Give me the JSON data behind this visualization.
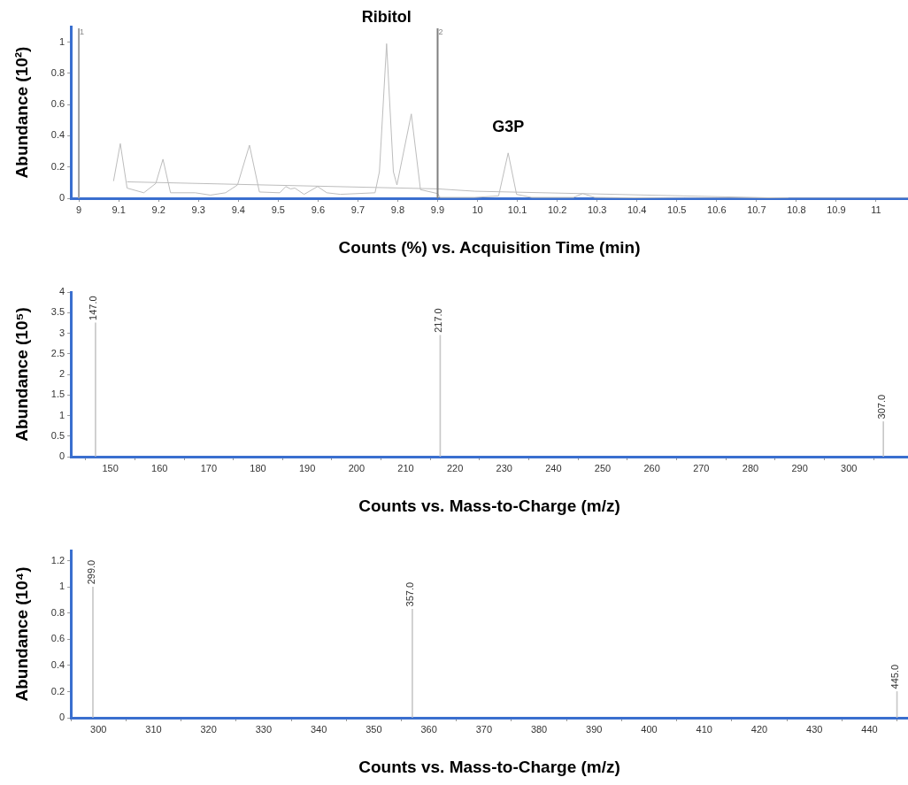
{
  "chart_data": [
    {
      "type": "line",
      "xlabel": "Counts (%) vs. Acquisition Time (min)",
      "ylabel": "Abundance (10²)",
      "xlim": [
        8.98,
        11.08
      ],
      "xticks": [
        9,
        9.1,
        9.2,
        9.3,
        9.4,
        9.5,
        9.6,
        9.7,
        9.8,
        9.9,
        10,
        10.1,
        10.2,
        10.3,
        10.4,
        10.5,
        10.6,
        10.7,
        10.8,
        10.9,
        11
      ],
      "ylim": [
        0,
        1.1
      ],
      "yticks": [
        0,
        0.2,
        0.4,
        0.6,
        0.8,
        1
      ],
      "grid": false,
      "legend": false,
      "marker": "none",
      "series": [
        {
          "color": "#bdbdbd",
          "x": [
            9.087,
            9.104,
            9.121,
            9.163,
            9.193,
            9.211,
            9.23,
            9.292,
            9.33,
            9.368,
            9.398,
            9.428,
            9.453,
            9.504,
            9.519,
            9.531,
            9.542,
            9.565,
            9.599,
            9.622,
            9.656,
            9.743,
            9.754,
            9.772,
            9.789,
            9.798,
            9.834,
            9.857,
            9.9,
            9.906,
            9.993,
            10.053,
            10.077,
            10.098,
            10.136,
            10.241,
            10.264,
            10.294,
            10.52,
            11.08
          ],
          "values": [
            0.11,
            0.35,
            0.065,
            0.035,
            0.095,
            0.25,
            0.035,
            0.035,
            0.02,
            0.035,
            0.085,
            0.34,
            0.04,
            0.035,
            0.075,
            0.06,
            0.065,
            0.025,
            0.075,
            0.035,
            0.025,
            0.035,
            0.17,
            0.99,
            0.17,
            0.085,
            0.54,
            0.055,
            0.03,
            0.005,
            0.005,
            0.015,
            0.29,
            0.025,
            0.005,
            0.005,
            0.03,
            0.005,
            0,
            0
          ]
        },
        {
          "color": "#bdbdbd",
          "x": [
            9.121,
            9.9,
            9.993,
            10.78
          ],
          "values": [
            0.105,
            0.06,
            0.045,
            0
          ]
        }
      ],
      "ref_lines": [
        {
          "axis": "x",
          "value": 9,
          "color": "#a0a0a0"
        },
        {
          "axis": "x",
          "value": 9.9,
          "color": "#808080"
        }
      ],
      "annotations": [
        {
          "text": "Ribitol",
          "x": 9.772,
          "y": 0.99
        },
        {
          "text": "G3P",
          "x": 10.077,
          "y": 0.29
        },
        {
          "text": "1",
          "x": 9,
          "y": 1.1
        },
        {
          "text": "2",
          "x": 9.9,
          "y": 1.1
        }
      ]
    },
    {
      "type": "bar",
      "xlabel": "Counts vs. Mass-to-Charge (m/z)",
      "ylabel": "Abundance (10⁵)",
      "x": [
        147,
        217,
        307
      ],
      "values": [
        3.25,
        2.95,
        0.85
      ],
      "annotations": [
        {
          "text": "147.0",
          "x": 147,
          "y": 3.25
        },
        {
          "text": "217.0",
          "x": 217,
          "y": 2.95
        },
        {
          "text": "307.0",
          "x": 307,
          "y": 0.85
        }
      ],
      "color": "#c8c8c8",
      "xlim": [
        142,
        312
      ],
      "xticks": [
        150,
        160,
        170,
        180,
        190,
        200,
        210,
        220,
        230,
        240,
        250,
        260,
        270,
        280,
        290,
        300
      ],
      "ylim": [
        0,
        4
      ],
      "yticks": [
        0,
        0.5,
        1,
        1.5,
        2,
        2.5,
        3,
        3.5,
        4
      ],
      "grid": false,
      "legend": false
    },
    {
      "type": "bar",
      "xlabel": "Counts vs. Mass-to-Charge (m/z)",
      "ylabel": "Abundance (10⁴)",
      "x": [
        299,
        357,
        445
      ],
      "values": [
        1.0,
        0.83,
        0.2
      ],
      "annotations": [
        {
          "text": "299.0",
          "x": 299,
          "y": 1.0
        },
        {
          "text": "357.0",
          "x": 357,
          "y": 0.83
        },
        {
          "text": "445.0",
          "x": 445,
          "y": 0.2
        }
      ],
      "color": "#c8c8c8",
      "xlim": [
        295,
        447
      ],
      "xticks": [
        300,
        310,
        320,
        330,
        340,
        350,
        360,
        370,
        380,
        390,
        400,
        410,
        420,
        430,
        440
      ],
      "ylim": [
        0,
        1.28
      ],
      "yticks": [
        0,
        0.2,
        0.4,
        0.6,
        0.8,
        1,
        1.2
      ],
      "grid": false,
      "legend": false
    }
  ]
}
